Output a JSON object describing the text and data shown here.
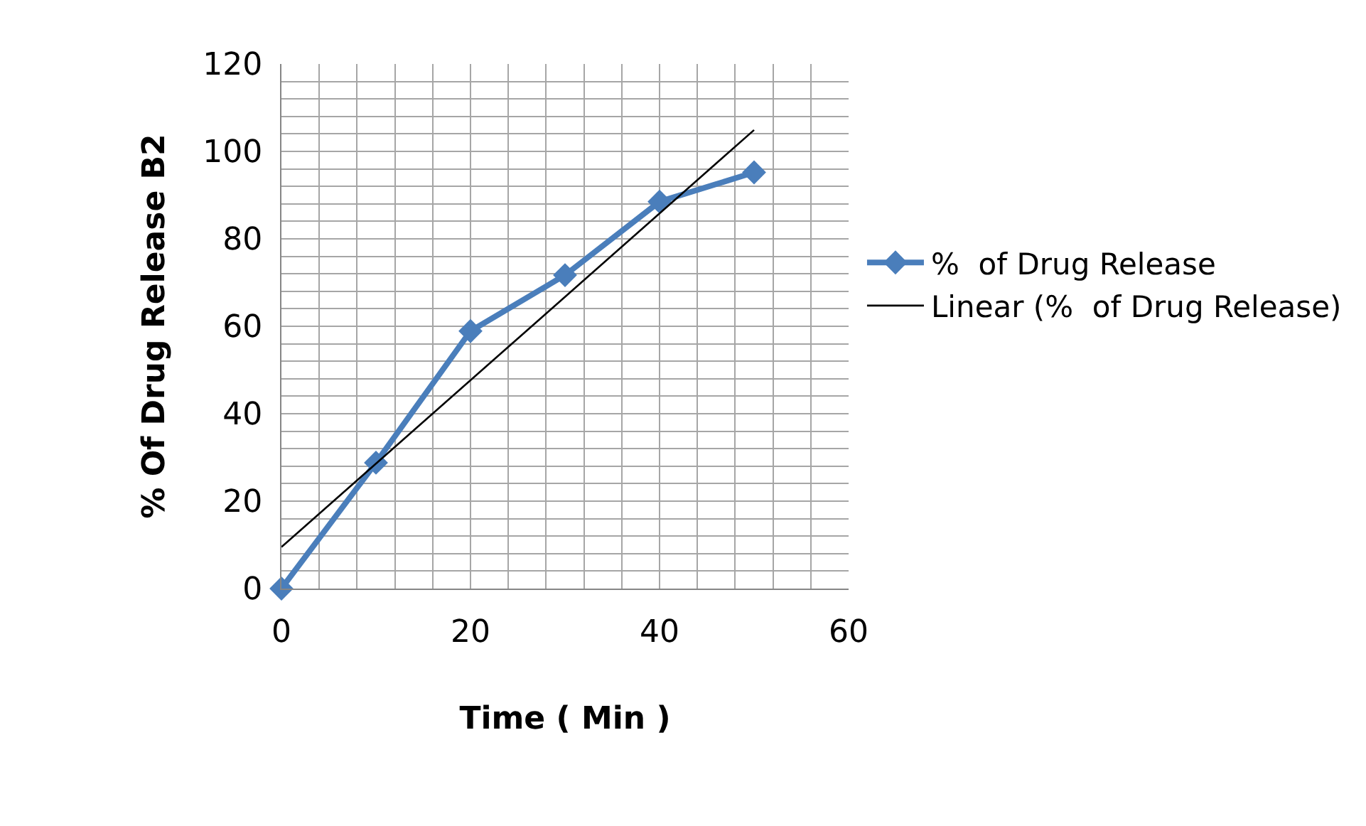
{
  "chart_data": {
    "type": "line",
    "xlabel": "Time ( Min )",
    "ylabel": "% Of Drug Release B2",
    "x": [
      0,
      10,
      20,
      30,
      40,
      50
    ],
    "series": [
      {
        "name": "%  of Drug Release",
        "color": "#4a7ebb",
        "values": [
          0,
          28.8,
          58.9,
          71.7,
          88.5,
          95.2
        ],
        "marker": "diamond"
      },
      {
        "name": "Linear (%  of Drug Release)",
        "color": "#000000",
        "type": "line",
        "x": [
          0,
          50
        ],
        "values": [
          9.5,
          104.9
        ],
        "marker": "none"
      }
    ],
    "xlim": [
      0,
      60
    ],
    "ylim": [
      0,
      120
    ],
    "xticks": [
      0,
      {
        "value": 4,
        "label": null
      },
      {
        "value": 8,
        "label": null
      },
      {
        "value": 12,
        "label": null
      },
      {
        "value": 16,
        "label": null
      },
      20,
      {
        "value": 24,
        "label": null
      },
      {
        "value": 28,
        "label": null
      },
      {
        "value": 32,
        "label": null
      },
      {
        "value": 36,
        "label": null
      },
      40,
      {
        "value": 44,
        "label": null
      },
      {
        "value": 48,
        "label": null
      },
      {
        "value": 52,
        "label": null
      },
      {
        "value": 56,
        "label": null
      },
      60
    ],
    "yticks": [
      0,
      {
        "value": 4,
        "label": null
      },
      {
        "value": 8,
        "label": null
      },
      {
        "value": 12,
        "label": null
      },
      {
        "value": 16,
        "label": null
      },
      20,
      {
        "value": 24,
        "label": null
      },
      {
        "value": 28,
        "label": null
      },
      {
        "value": 32,
        "label": null
      },
      {
        "value": 36,
        "label": null
      },
      40,
      {
        "value": 44,
        "label": null
      },
      {
        "value": 48,
        "label": null
      },
      {
        "value": 52,
        "label": null
      },
      {
        "value": 56,
        "label": null
      },
      60,
      {
        "value": 64,
        "label": null
      },
      {
        "value": 68,
        "label": null
      },
      {
        "value": 72,
        "label": null
      },
      {
        "value": 76,
        "label": null
      },
      80,
      {
        "value": 84,
        "label": null
      },
      {
        "value": 88,
        "label": null
      },
      {
        "value": 92,
        "label": null
      },
      {
        "value": 96,
        "label": null
      },
      100,
      {
        "value": 104,
        "label": null
      },
      {
        "value": 108,
        "label": null
      },
      {
        "value": 112,
        "label": null
      },
      {
        "value": 116,
        "label": null
      },
      120
    ],
    "grid": true,
    "legend": "right"
  }
}
